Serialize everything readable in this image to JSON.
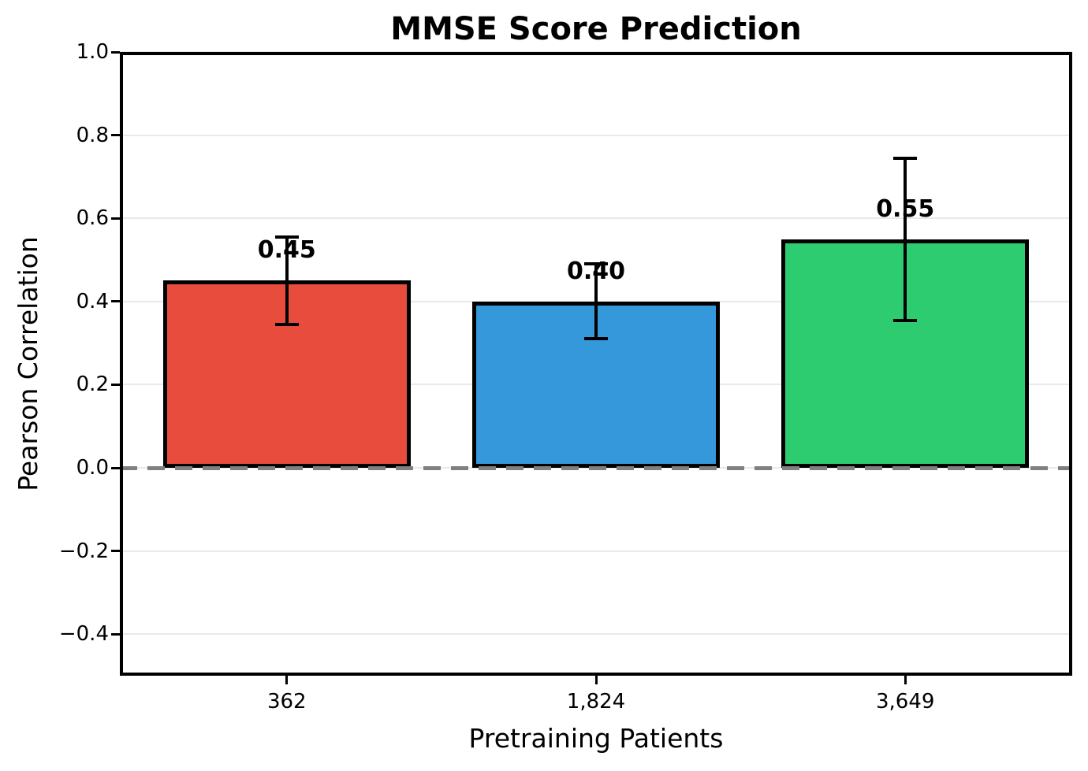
{
  "chart_data": {
    "type": "bar",
    "title": "MMSE Score Prediction",
    "xlabel": "Pretraining Patients",
    "ylabel": "Pearson Correlation",
    "categories": [
      "362",
      "1,824",
      "3,649"
    ],
    "values": [
      0.45,
      0.4,
      0.55
    ],
    "bar_labels": [
      "0.45",
      "0.40",
      "0.55"
    ],
    "errors": [
      0.105,
      0.09,
      0.195
    ],
    "bar_colors": [
      "#e74c3c",
      "#3498db",
      "#2ecc71"
    ],
    "bar_edge_color": "#000000",
    "error_bar_color": "#000000",
    "ylim": [
      -0.5,
      1.0
    ],
    "yticks": [
      1.0,
      0.8,
      0.6,
      0.4,
      0.2,
      0.0,
      -0.2,
      -0.4
    ],
    "ytick_labels": [
      "1.0",
      "0.8",
      "0.6",
      "0.4",
      "0.2",
      "0.0",
      "−0.2",
      "−0.4"
    ],
    "grid": true,
    "gridline_color": "#e9e9e9",
    "zero_line": {
      "y": 0,
      "style": "dashed",
      "color": "#808080"
    },
    "legend": null,
    "background_color": "#ffffff"
  }
}
